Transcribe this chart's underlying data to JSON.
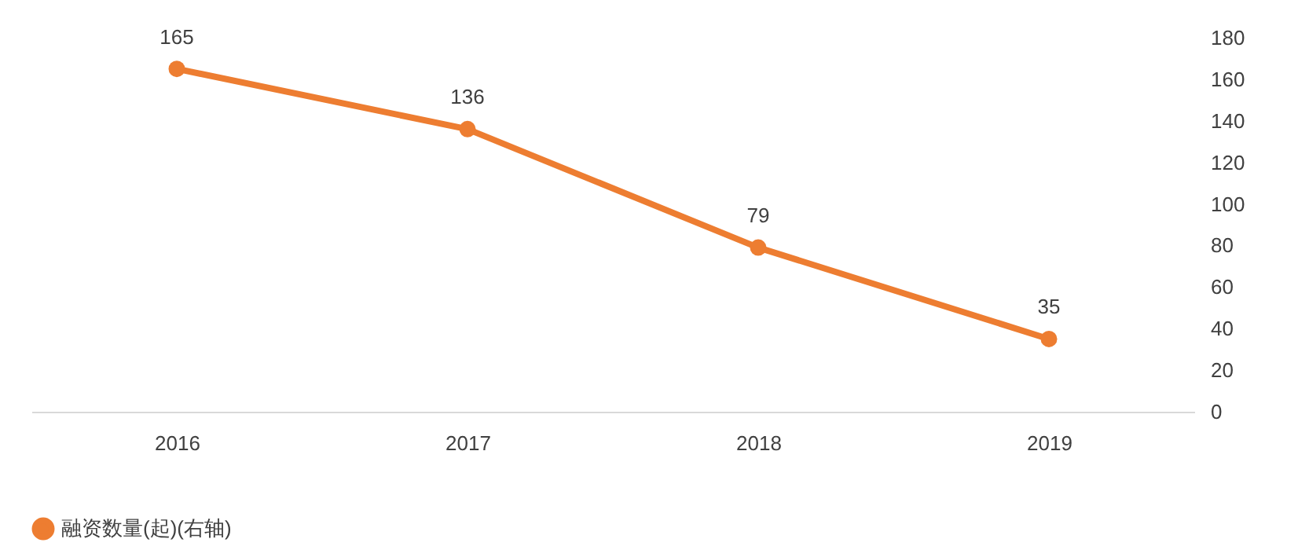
{
  "chart_data": {
    "type": "line",
    "categories": [
      "2016",
      "2017",
      "2018",
      "2019"
    ],
    "series": [
      {
        "name": "融资数量(起)(右轴)",
        "color": "#ed7d31",
        "axis": "y2",
        "values": [
          165,
          136,
          79,
          35
        ]
      }
    ],
    "y2lim": [
      0,
      180
    ],
    "y2ticks": [
      0,
      20,
      40,
      60,
      80,
      100,
      120,
      140,
      160,
      180
    ],
    "data_labels": true,
    "marker": "circle",
    "legend": "bottom",
    "grid": false
  }
}
